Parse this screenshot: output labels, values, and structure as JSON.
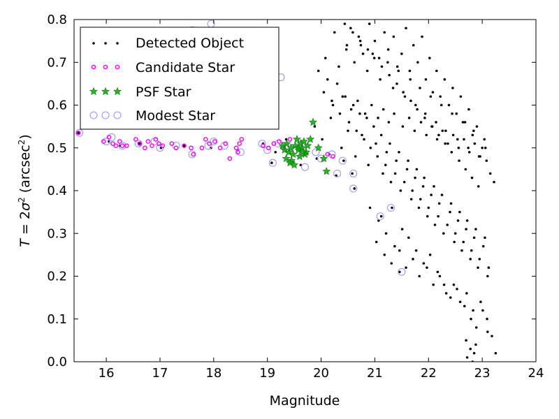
{
  "chart_data": {
    "type": "scatter",
    "xlabel": "Magnitude",
    "ylabel": "T = 2σ² (arcsec²)",
    "ylabel_parts": {
      "lead": "T",
      "eq": " = 2",
      "sigma": "σ",
      "sup2": "2",
      "unit": " (arcsec",
      "sup2b": "2",
      "close": ")"
    },
    "xlim": [
      15.4,
      24
    ],
    "ylim": [
      0.0,
      0.8
    ],
    "x_ticks": [
      16,
      17,
      18,
      19,
      20,
      21,
      22,
      23,
      24
    ],
    "x_tick_labels": [
      "16",
      "17",
      "18",
      "19",
      "20",
      "21",
      "22",
      "23",
      "24"
    ],
    "y_ticks": [
      0.0,
      0.1,
      0.2,
      0.3,
      0.4,
      0.5,
      0.6,
      0.7,
      0.8
    ],
    "y_tick_labels": [
      "0.0",
      "0.1",
      "0.2",
      "0.3",
      "0.4",
      "0.5",
      "0.6",
      "0.7",
      "0.8"
    ],
    "grid": false,
    "legend_position": "top-left",
    "legend": [
      "Detected Object",
      "Candidate Star",
      "PSF Star",
      "Modest Star"
    ],
    "series": [
      {
        "name": "Detected Object",
        "marker": "dot",
        "color": "#000000",
        "x": [
          15.48,
          16.05,
          16.25,
          16.62,
          17.02,
          17.45,
          17.95,
          18.45,
          18.92,
          19.08,
          19.15,
          19.35,
          19.62,
          19.92,
          20.15,
          20.28,
          20.42,
          20.58,
          20.62,
          21.12,
          21.32,
          21.46,
          20.25,
          20.48,
          20.55,
          20.7,
          20.78,
          20.9,
          21.0,
          21.08,
          21.18,
          21.25,
          21.35,
          21.42,
          21.5,
          21.58,
          21.65,
          21.72,
          21.8,
          21.88,
          21.95,
          22.02,
          22.08,
          22.15,
          22.22,
          22.3,
          22.38,
          22.45,
          22.52,
          22.6,
          22.68,
          22.75,
          22.82,
          22.9,
          23.0,
          23.08,
          23.15,
          23.22,
          19.95,
          20.05,
          20.12,
          20.2,
          20.3,
          20.35,
          20.45,
          20.52,
          20.6,
          20.66,
          20.72,
          20.8,
          20.85,
          20.92,
          20.98,
          21.05,
          21.12,
          21.2,
          21.28,
          21.38,
          21.45,
          21.55,
          21.62,
          21.7,
          21.78,
          21.85,
          21.92,
          22.0,
          22.1,
          22.18,
          22.25,
          22.35,
          22.42,
          22.5,
          22.58,
          22.65,
          22.72,
          22.8,
          22.88,
          22.95,
          23.05,
          23.12,
          19.88,
          20.02,
          20.18,
          20.38,
          20.5,
          20.64,
          20.76,
          20.88,
          21.02,
          21.15,
          21.22,
          21.3,
          21.4,
          21.48,
          21.6,
          21.68,
          21.75,
          21.82,
          21.9,
          21.98,
          22.05,
          22.12,
          22.2,
          22.28,
          22.4,
          22.48,
          22.55,
          22.62,
          22.7,
          22.78,
          22.85,
          22.92,
          23.02,
          23.1,
          20.22,
          20.4,
          20.56,
          20.68,
          20.82,
          20.94,
          21.06,
          21.16,
          21.26,
          21.36,
          21.52,
          21.64,
          21.74,
          21.86,
          21.96,
          22.06,
          22.16,
          22.26,
          22.36,
          22.46,
          22.56,
          22.66,
          22.76,
          22.86,
          22.96,
          23.06,
          20.08,
          20.33,
          20.47,
          20.62,
          20.74,
          20.86,
          20.96,
          21.1,
          21.24,
          21.34,
          21.44,
          21.56,
          21.66,
          21.76,
          21.84,
          21.94,
          22.04,
          22.14,
          22.24,
          22.32,
          22.44,
          22.54,
          22.64,
          22.74,
          22.84,
          22.94,
          23.04,
          21.03,
          21.18,
          21.31,
          21.46,
          21.58,
          21.71,
          21.83,
          21.97,
          22.09,
          22.21,
          22.33,
          22.47,
          22.59,
          22.71,
          22.83,
          22.97,
          23.09,
          20.44,
          20.59,
          20.73,
          20.87,
          20.99,
          21.13,
          21.27,
          21.41,
          21.53,
          21.67,
          21.79,
          21.93,
          22.07,
          22.19,
          22.31,
          22.43,
          22.57,
          22.69,
          22.81,
          22.93,
          20.91,
          21.07,
          21.21,
          21.37,
          21.51,
          21.63,
          21.77,
          21.91,
          22.03,
          22.17,
          22.29,
          22.41,
          22.53,
          22.67,
          22.79,
          22.89,
          23.01,
          23.18,
          22.7,
          22.78,
          22.85,
          22.72,
          22.82,
          22.88,
          23.1,
          23.25
        ],
        "y": [
          0.535,
          0.515,
          0.505,
          0.51,
          0.5,
          0.505,
          0.5,
          0.495,
          0.51,
          0.465,
          0.49,
          0.52,
          0.46,
          0.475,
          0.485,
          0.435,
          0.47,
          0.44,
          0.405,
          0.34,
          0.36,
          0.21,
          0.77,
          0.74,
          0.78,
          0.76,
          0.72,
          0.79,
          0.75,
          0.71,
          0.77,
          0.73,
          0.76,
          0.69,
          0.72,
          0.78,
          0.68,
          0.74,
          0.7,
          0.76,
          0.66,
          0.71,
          0.63,
          0.68,
          0.62,
          0.66,
          0.6,
          0.64,
          0.58,
          0.62,
          0.56,
          0.59,
          0.53,
          0.55,
          0.5,
          0.47,
          0.44,
          0.42,
          0.68,
          0.63,
          0.66,
          0.61,
          0.65,
          0.58,
          0.62,
          0.56,
          0.6,
          0.54,
          0.58,
          0.52,
          0.57,
          0.5,
          0.55,
          0.48,
          0.53,
          0.46,
          0.51,
          0.44,
          0.49,
          0.42,
          0.47,
          0.4,
          0.45,
          0.38,
          0.43,
          0.36,
          0.41,
          0.34,
          0.39,
          0.32,
          0.37,
          0.3,
          0.35,
          0.28,
          0.33,
          0.26,
          0.31,
          0.24,
          0.29,
          0.22,
          0.55,
          0.52,
          0.57,
          0.5,
          0.54,
          0.48,
          0.53,
          0.46,
          0.51,
          0.44,
          0.49,
          0.42,
          0.47,
          0.4,
          0.45,
          0.38,
          0.43,
          0.36,
          0.41,
          0.34,
          0.39,
          0.32,
          0.37,
          0.3,
          0.35,
          0.28,
          0.33,
          0.26,
          0.31,
          0.24,
          0.29,
          0.22,
          0.27,
          0.2,
          0.6,
          0.62,
          0.59,
          0.61,
          0.58,
          0.6,
          0.57,
          0.59,
          0.56,
          0.58,
          0.55,
          0.57,
          0.54,
          0.56,
          0.53,
          0.55,
          0.52,
          0.54,
          0.51,
          0.53,
          0.5,
          0.52,
          0.49,
          0.51,
          0.48,
          0.5,
          0.71,
          0.69,
          0.73,
          0.7,
          0.74,
          0.68,
          0.72,
          0.66,
          0.7,
          0.64,
          0.68,
          0.62,
          0.66,
          0.6,
          0.64,
          0.58,
          0.62,
          0.56,
          0.6,
          0.54,
          0.58,
          0.52,
          0.56,
          0.5,
          0.54,
          0.48,
          0.52,
          0.28,
          0.25,
          0.23,
          0.26,
          0.22,
          0.24,
          0.2,
          0.22,
          0.18,
          0.2,
          0.16,
          0.18,
          0.14,
          0.16,
          0.12,
          0.14,
          0.1,
          0.79,
          0.77,
          0.75,
          0.73,
          0.71,
          0.69,
          0.67,
          0.65,
          0.63,
          0.61,
          0.59,
          0.57,
          0.55,
          0.53,
          0.51,
          0.49,
          0.47,
          0.45,
          0.43,
          0.41,
          0.36,
          0.33,
          0.3,
          0.27,
          0.31,
          0.29,
          0.26,
          0.23,
          0.25,
          0.21,
          0.18,
          0.15,
          0.17,
          0.13,
          0.1,
          0.08,
          0.12,
          0.06,
          0.05,
          0.03,
          0.02,
          0.01,
          0.0,
          0.04,
          0.07,
          0.02
        ],
        "y_note": "values read from axes, estimated"
      },
      {
        "name": "Candidate Star",
        "marker": "circle-small",
        "color": "#ff00ff",
        "x": [
          15.48,
          15.95,
          16.05,
          16.12,
          16.18,
          16.25,
          16.3,
          16.38,
          16.55,
          16.62,
          16.72,
          16.78,
          16.85,
          16.92,
          16.98,
          17.05,
          17.22,
          17.3,
          17.45,
          17.58,
          17.62,
          17.78,
          17.85,
          17.92,
          18.02,
          18.12,
          18.22,
          18.3,
          18.42,
          18.45,
          18.48,
          18.52,
          18.92,
          19.02,
          19.12,
          19.22,
          19.3,
          19.42,
          20.12,
          20.22
        ],
        "y": [
          0.535,
          0.515,
          0.525,
          0.51,
          0.505,
          0.515,
          0.505,
          0.505,
          0.52,
          0.51,
          0.5,
          0.515,
          0.505,
          0.52,
          0.51,
          0.505,
          0.51,
          0.5,
          0.505,
          0.5,
          0.485,
          0.5,
          0.52,
          0.51,
          0.515,
          0.5,
          0.51,
          0.475,
          0.5,
          0.49,
          0.51,
          0.52,
          0.505,
          0.5,
          0.51,
          0.515,
          0.5,
          0.52,
          0.485,
          0.48
        ]
      },
      {
        "name": "PSF Star",
        "marker": "star",
        "color": "#00aa00",
        "x": [
          19.28,
          19.32,
          19.36,
          19.4,
          19.44,
          19.48,
          19.52,
          19.55,
          19.58,
          19.62,
          19.65,
          19.68,
          19.72,
          19.75,
          19.35,
          19.45,
          19.5,
          19.6,
          19.7,
          19.8,
          19.85,
          19.95,
          20.05,
          20.1,
          19.42,
          19.58,
          19.66
        ],
        "y": [
          0.505,
          0.495,
          0.51,
          0.49,
          0.5,
          0.485,
          0.505,
          0.52,
          0.495,
          0.51,
          0.5,
          0.515,
          0.49,
          0.505,
          0.475,
          0.47,
          0.46,
          0.48,
          0.485,
          0.52,
          0.56,
          0.5,
          0.475,
          0.445,
          0.465,
          0.5,
          0.49
        ]
      },
      {
        "name": "Modest Star",
        "marker": "circle-large",
        "color": "#9999ff",
        "x": [
          15.5,
          16.0,
          16.1,
          16.3,
          16.6,
          16.9,
          17.0,
          17.3,
          17.6,
          17.9,
          18.0,
          18.2,
          18.5,
          18.9,
          19.0,
          19.1,
          19.2,
          19.4,
          19.7,
          19.9,
          20.0,
          20.2,
          20.3,
          20.4,
          20.6,
          20.6,
          21.1,
          21.3,
          21.5,
          19.25,
          17.6,
          17.95
        ],
        "y": [
          0.535,
          0.515,
          0.525,
          0.505,
          0.51,
          0.515,
          0.5,
          0.505,
          0.485,
          0.505,
          0.515,
          0.505,
          0.49,
          0.51,
          0.495,
          0.465,
          0.51,
          0.5,
          0.455,
          0.49,
          0.475,
          0.485,
          0.44,
          0.47,
          0.44,
          0.405,
          0.34,
          0.36,
          0.21,
          0.665,
          0.775,
          0.79
        ]
      }
    ]
  }
}
